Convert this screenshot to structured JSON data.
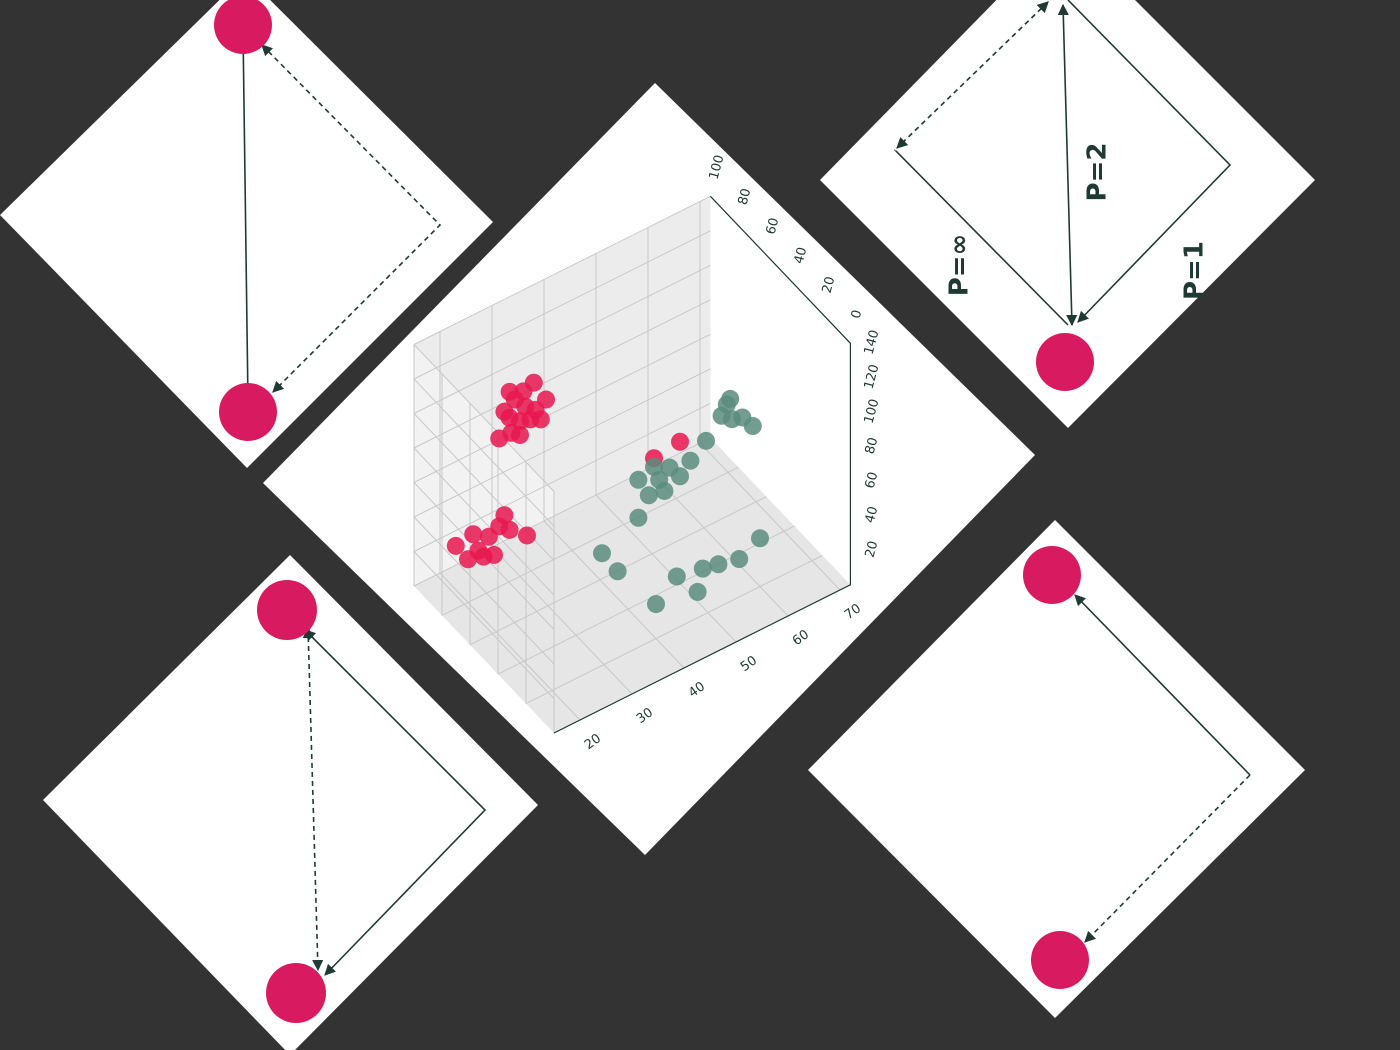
{
  "chart_data": {
    "type": "scatter3d",
    "xlim": [
      15,
      72
    ],
    "ylim": [
      0,
      140
    ],
    "zlim": [
      0,
      100
    ],
    "xticks": [
      20,
      30,
      40,
      50,
      60,
      70
    ],
    "yticks": [
      20,
      40,
      60,
      80,
      100,
      120,
      140
    ],
    "zticks": [
      0,
      20,
      40,
      60,
      80,
      100
    ],
    "grid": true,
    "series": [
      {
        "color": "#e8174f",
        "x": [
          30,
          28,
          32,
          27,
          34,
          31,
          29,
          33,
          26,
          35,
          30,
          28,
          32,
          27,
          34,
          22,
          24,
          20,
          26,
          23,
          28,
          21,
          25,
          30,
          27,
          19,
          45,
          50
        ],
        "y": [
          90,
          95,
          88,
          100,
          85,
          97,
          104,
          92,
          86,
          95,
          82,
          110,
          100,
          92,
          102,
          27,
          32,
          25,
          35,
          22,
          30,
          38,
          20,
          28,
          40,
          30,
          80,
          82
        ],
        "z": [
          80,
          80,
          80,
          80,
          80,
          80,
          80,
          80,
          80,
          80,
          80,
          80,
          85,
          75,
          85,
          80,
          80,
          80,
          80,
          80,
          80,
          80,
          80,
          75,
          80,
          85,
          40,
          40
        ]
      },
      {
        "color": "#5a8c7c",
        "x": [
          46,
          44,
          48,
          42,
          50,
          47,
          45,
          52,
          60,
          58,
          62,
          59,
          61,
          55,
          49,
          52,
          56,
          60,
          44,
          40,
          38,
          35,
          42,
          64,
          48
        ],
        "y": [
          66,
          60,
          70,
          72,
          62,
          58,
          75,
          68,
          80,
          85,
          78,
          90,
          86,
          75,
          27,
          25,
          22,
          28,
          30,
          20,
          25,
          40,
          50,
          70,
          15
        ],
        "z": [
          40,
          40,
          40,
          40,
          40,
          40,
          40,
          40,
          40,
          40,
          40,
          40,
          45,
          40,
          20,
          20,
          20,
          20,
          20,
          20,
          40,
          40,
          40,
          40,
          20
        ]
      }
    ]
  },
  "panels": {
    "labels": [
      "P=∞",
      "P=2",
      "P=1"
    ]
  }
}
